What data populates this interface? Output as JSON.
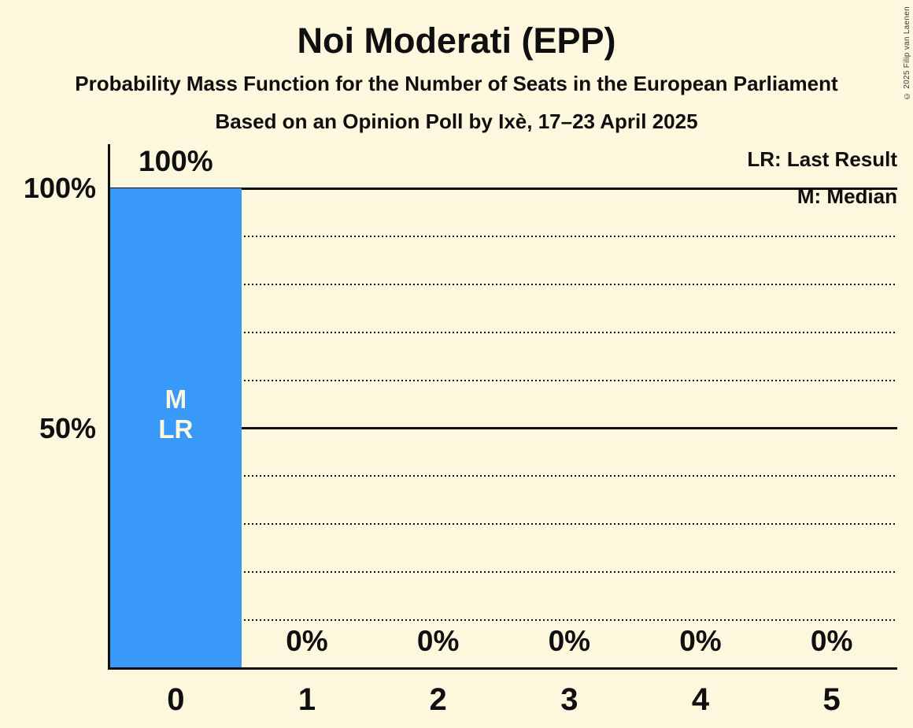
{
  "header": {
    "title": "Noi Moderati (EPP)",
    "subtitle1": "Probability Mass Function for the Number of Seats in the European Parliament",
    "subtitle2": "Based on an Opinion Poll by Ixè, 17–23 April 2025"
  },
  "legend": {
    "line1": "LR: Last Result",
    "line2": "M: Median"
  },
  "copyright": "© 2025 Filip van Laenen",
  "chart_data": {
    "type": "bar",
    "title": "Noi Moderati (EPP)",
    "categories": [
      "0",
      "1",
      "2",
      "3",
      "4",
      "5"
    ],
    "values": [
      100,
      0,
      0,
      0,
      0,
      0
    ],
    "value_labels": [
      "100%",
      "0%",
      "0%",
      "0%",
      "0%",
      "0%"
    ],
    "y_axis_ticks": [
      {
        "value": 100,
        "label": "100%"
      },
      {
        "value": 50,
        "label": "50%"
      }
    ],
    "ylim": [
      0,
      100
    ],
    "gridlines_solid": [
      100,
      50
    ],
    "gridlines_dotted": [
      90,
      80,
      70,
      60,
      40,
      30,
      20,
      10
    ],
    "annotations": [
      {
        "category_index": 0,
        "lines": [
          "M",
          "LR"
        ]
      }
    ],
    "median_seats": 0,
    "last_result_seats": 0,
    "legend_position": "top-right",
    "colors": {
      "bar": "#3899F8",
      "background": "#FCF7DD",
      "text": "#0F0F0F",
      "bar_annotation_text": "#FCF7DD"
    }
  }
}
